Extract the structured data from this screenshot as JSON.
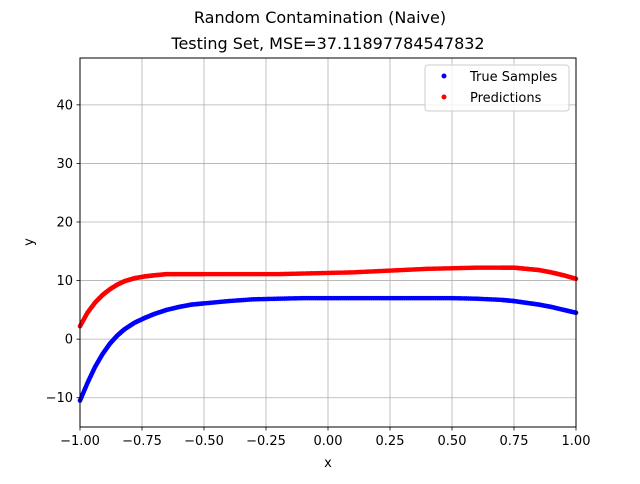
{
  "chart_data": {
    "type": "scatter",
    "suptitle": "Random Contamination (Naive)",
    "title": "Testing Set, MSE=37.11897784547832",
    "xlabel": "x",
    "ylabel": "y",
    "xlim": [
      -1.0,
      1.0
    ],
    "ylim": [
      -15,
      48
    ],
    "grid": true,
    "legend_position": "upper right",
    "x_ticks": [
      -1.0,
      -0.75,
      -0.5,
      -0.25,
      0.0,
      0.25,
      0.5,
      0.75,
      1.0
    ],
    "x_tick_labels": [
      "−1.00",
      "−0.75",
      "−0.50",
      "−0.25",
      "0.00",
      "0.25",
      "0.50",
      "0.75",
      "1.00"
    ],
    "y_ticks": [
      -10,
      0,
      10,
      20,
      30,
      40
    ],
    "y_tick_labels": [
      "−10",
      "0",
      "10",
      "20",
      "30",
      "40"
    ],
    "series": [
      {
        "name": "True Samples",
        "color": "#0000ff",
        "x": [
          -1.0,
          -0.97,
          -0.94,
          -0.91,
          -0.88,
          -0.85,
          -0.82,
          -0.78,
          -0.74,
          -0.7,
          -0.65,
          -0.6,
          -0.55,
          -0.5,
          -0.4,
          -0.3,
          -0.2,
          -0.1,
          0.0,
          0.1,
          0.2,
          0.3,
          0.4,
          0.5,
          0.6,
          0.7,
          0.75,
          0.8,
          0.85,
          0.9,
          0.95,
          1.0
        ],
        "y": [
          -10.5,
          -7.5,
          -4.8,
          -2.6,
          -0.8,
          0.6,
          1.7,
          2.8,
          3.6,
          4.3,
          5.0,
          5.5,
          5.9,
          6.1,
          6.5,
          6.8,
          6.9,
          7.0,
          7.0,
          7.0,
          7.0,
          7.0,
          7.0,
          7.0,
          6.9,
          6.7,
          6.5,
          6.2,
          5.9,
          5.5,
          5.0,
          4.5
        ]
      },
      {
        "name": "Predictions",
        "color": "#ff0000",
        "x": [
          -1.0,
          -0.97,
          -0.94,
          -0.91,
          -0.88,
          -0.85,
          -0.82,
          -0.78,
          -0.74,
          -0.7,
          -0.65,
          -0.6,
          -0.55,
          -0.5,
          -0.4,
          -0.3,
          -0.2,
          -0.1,
          0.0,
          0.1,
          0.2,
          0.3,
          0.4,
          0.5,
          0.6,
          0.7,
          0.75,
          0.8,
          0.85,
          0.9,
          0.95,
          1.0
        ],
        "y": [
          2.2,
          4.5,
          6.2,
          7.5,
          8.5,
          9.3,
          9.9,
          10.4,
          10.7,
          10.9,
          11.1,
          11.1,
          11.1,
          11.1,
          11.1,
          11.1,
          11.1,
          11.2,
          11.3,
          11.4,
          11.6,
          11.8,
          12.0,
          12.1,
          12.2,
          12.2,
          12.2,
          12.0,
          11.8,
          11.4,
          10.9,
          10.3
        ]
      }
    ]
  }
}
